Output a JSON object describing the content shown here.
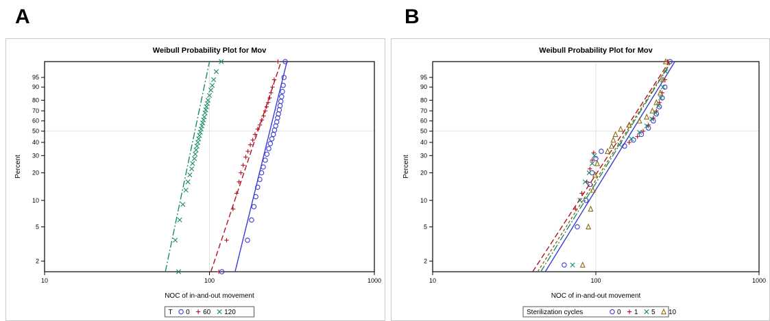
{
  "panels": [
    {
      "letter": "A",
      "legend_title": "T"
    },
    {
      "letter": "B",
      "legend_title": "Sterilization cycles"
    }
  ],
  "chart_data": [
    {
      "type": "scatter",
      "title": "Weibull Probability Plot for Mov",
      "xlabel": "NOC of in-and-out movement",
      "ylabel": "Percent",
      "xscale": "log",
      "yscale": "weibull",
      "xlim": [
        10,
        1000
      ],
      "ylim": [
        1.5,
        99
      ],
      "xticks": [
        "10",
        "100",
        "1000"
      ],
      "yticks": [
        "2",
        "5",
        "10",
        "20",
        "30",
        "40",
        "50",
        "60",
        "70",
        "80",
        "90",
        "95"
      ],
      "legend_placement": "bottom",
      "series": [
        {
          "name": "0",
          "marker": "circle",
          "color": "#3a3ad6",
          "dash": "",
          "fit": [
            [
              143,
              1.5
            ],
            [
              295,
              99
            ]
          ],
          "points": [
            [
              119,
              1.5
            ],
            [
              170,
              3.5
            ],
            [
              180,
              6
            ],
            [
              186,
              8.5
            ],
            [
              191,
              11
            ],
            [
              196,
              14
            ],
            [
              202,
              17
            ],
            [
              207,
              20
            ],
            [
              212,
              23
            ],
            [
              218,
              27
            ],
            [
              223,
              31
            ],
            [
              229,
              35
            ],
            [
              234,
              39
            ],
            [
              239,
              43
            ],
            [
              244,
              47
            ],
            [
              248,
              51
            ],
            [
              252,
              55
            ],
            [
              256,
              59
            ],
            [
              259,
              63
            ],
            [
              262,
              67
            ],
            [
              265,
              71
            ],
            [
              268,
              75
            ],
            [
              271,
              79
            ],
            [
              274,
              83
            ],
            [
              277,
              87
            ],
            [
              280,
              91
            ],
            [
              283,
              95
            ],
            [
              288,
              99
            ]
          ]
        },
        {
          "name": "60",
          "marker": "plus",
          "color": "#b01020",
          "dash": "8,4",
          "fit": [
            [
              102,
              1.5
            ],
            [
              272,
              99
            ]
          ],
          "points": [
            [
              114,
              1.5
            ],
            [
              127,
              3.5
            ],
            [
              139,
              8
            ],
            [
              146,
              12
            ],
            [
              151,
              16
            ],
            [
              155,
              20
            ],
            [
              160,
              24
            ],
            [
              166,
              29
            ],
            [
              171,
              33
            ],
            [
              177,
              38
            ],
            [
              183,
              42
            ],
            [
              189,
              47
            ],
            [
              196,
              52
            ],
            [
              202,
              56
            ],
            [
              208,
              61
            ],
            [
              213,
              65
            ],
            [
              218,
              70
            ],
            [
              222,
              74
            ],
            [
              227,
              78
            ],
            [
              232,
              82
            ],
            [
              236,
              86
            ],
            [
              241,
              90
            ],
            [
              247,
              94
            ],
            [
              260,
              99
            ]
          ]
        },
        {
          "name": "120",
          "marker": "x",
          "color": "#1a8a6a",
          "dash": "10,3,2,3",
          "fit": [
            [
              54,
              1.5
            ],
            [
              100,
              99
            ]
          ],
          "points": [
            [
              65,
              1.5
            ],
            [
              62,
              3.5
            ],
            [
              66,
              6
            ],
            [
              69,
              9
            ],
            [
              72,
              13
            ],
            [
              74,
              16
            ],
            [
              76,
              19
            ],
            [
              78,
              22
            ],
            [
              79,
              25
            ],
            [
              81,
              28
            ],
            [
              82,
              31
            ],
            [
              83,
              34
            ],
            [
              84,
              37
            ],
            [
              85,
              40
            ],
            [
              86,
              43
            ],
            [
              87,
              46
            ],
            [
              88,
              49
            ],
            [
              89,
              52
            ],
            [
              90,
              55
            ],
            [
              91,
              58
            ],
            [
              92,
              61
            ],
            [
              93,
              64
            ],
            [
              94,
              68
            ],
            [
              95,
              71
            ],
            [
              96,
              74
            ],
            [
              97,
              77
            ],
            [
              98,
              80
            ],
            [
              100,
              84
            ],
            [
              102,
              88
            ],
            [
              104,
              91
            ],
            [
              106,
              94
            ],
            [
              110,
              97
            ],
            [
              118,
              99
            ]
          ]
        }
      ]
    },
    {
      "type": "scatter",
      "title": "Weibull Probability Plot for Mov",
      "xlabel": "NOC of in-and-out movement",
      "ylabel": "Percent",
      "xscale": "log",
      "yscale": "weibull",
      "xlim": [
        10,
        1000
      ],
      "ylim": [
        1.5,
        99
      ],
      "xticks": [
        "10",
        "100",
        "1000"
      ],
      "yticks": [
        "2",
        "5",
        "10",
        "20",
        "30",
        "40",
        "50",
        "60",
        "70",
        "80",
        "90",
        "95"
      ],
      "legend_placement": "bottom",
      "series": [
        {
          "name": "0",
          "marker": "circle",
          "color": "#3a3ad6",
          "dash": "",
          "fit": [
            [
              49,
              1.5
            ],
            [
              305,
              99
            ]
          ],
          "points": [
            [
              64,
              1.8
            ],
            [
              77,
              5
            ],
            [
              87,
              10
            ],
            [
              92,
              15
            ],
            [
              95,
              20
            ],
            [
              100,
              28
            ],
            [
              108,
              33
            ],
            [
              150,
              37
            ],
            [
              170,
              42
            ],
            [
              190,
              47
            ],
            [
              210,
              53
            ],
            [
              225,
              60
            ],
            [
              235,
              67
            ],
            [
              245,
              74
            ],
            [
              255,
              82
            ],
            [
              265,
              90
            ],
            [
              285,
              99
            ]
          ]
        },
        {
          "name": "1",
          "marker": "plus",
          "color": "#b01020",
          "dash": "8,4",
          "fit": [
            [
              41,
              1.5
            ],
            [
              282,
              99
            ]
          ],
          "points": [
            [
              75,
              8
            ],
            [
              82,
              12
            ],
            [
              88,
              16
            ],
            [
              92,
              22
            ],
            [
              95,
              27
            ],
            [
              97,
              32
            ],
            [
              160,
              40
            ],
            [
              180,
              45
            ],
            [
              195,
              50
            ],
            [
              210,
              56
            ],
            [
              225,
              63
            ],
            [
              235,
              70
            ],
            [
              245,
              78
            ],
            [
              255,
              86
            ],
            [
              265,
              94
            ],
            [
              275,
              99
            ]
          ]
        },
        {
          "name": "5",
          "marker": "x",
          "color": "#1a8a6a",
          "dash": "10,3,2,3",
          "fit": [
            [
              46,
              1.5
            ],
            [
              290,
              99
            ]
          ],
          "points": [
            [
              72,
              1.8
            ],
            [
              80,
              10
            ],
            [
              86,
              16
            ],
            [
              91,
              20
            ],
            [
              95,
              25
            ],
            [
              98,
              30
            ],
            [
              140,
              38
            ],
            [
              165,
              43
            ],
            [
              185,
              49
            ],
            [
              205,
              55
            ],
            [
              220,
              62
            ],
            [
              232,
              68
            ],
            [
              242,
              75
            ],
            [
              250,
              82
            ],
            [
              258,
              90
            ],
            [
              268,
              97
            ]
          ]
        },
        {
          "name": "10",
          "marker": "triangle",
          "color": "#8a6a10",
          "dash": "4,3",
          "fit": [
            [
              44,
              1.5
            ],
            [
              288,
              99
            ]
          ],
          "points": [
            [
              83,
              1.8
            ],
            [
              90,
              5
            ],
            [
              93,
              8
            ],
            [
              96,
              13
            ],
            [
              99,
              19
            ],
            [
              102,
              25
            ],
            [
              118,
              33
            ],
            [
              125,
              37
            ],
            [
              128,
              42
            ],
            [
              132,
              47
            ],
            [
              142,
              52
            ],
            [
              160,
              56
            ],
            [
              185,
              60
            ],
            [
              205,
              64
            ],
            [
              222,
              70
            ],
            [
              235,
              78
            ],
            [
              248,
              86
            ],
            [
              258,
              94
            ],
            [
              268,
              99
            ]
          ]
        }
      ]
    }
  ]
}
